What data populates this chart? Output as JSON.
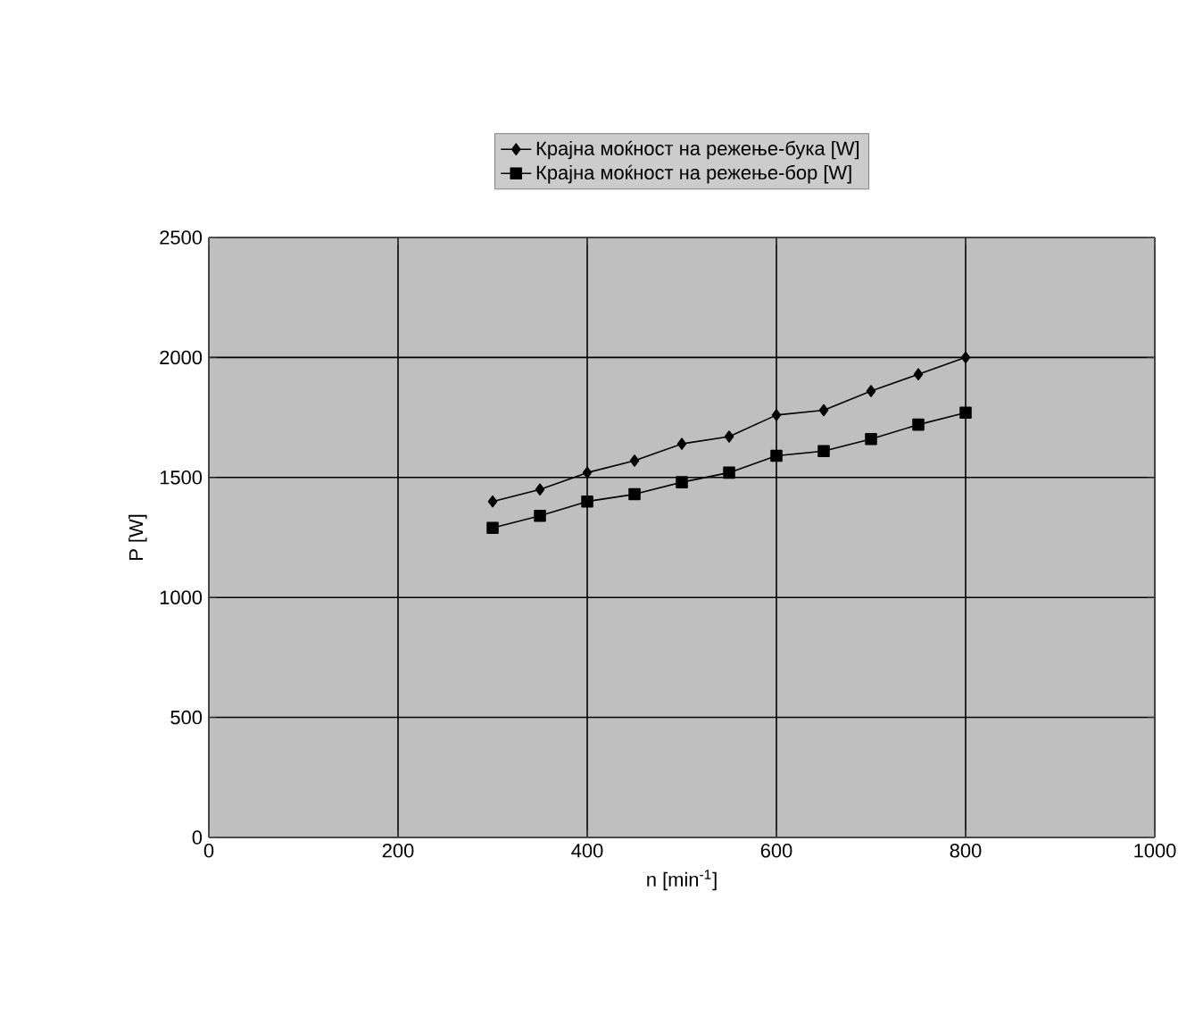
{
  "chart_data": {
    "type": "line",
    "xlabel": "n [min$^{-1}$]",
    "ylabel": "P [W]",
    "x": [
      300,
      350,
      400,
      450,
      500,
      550,
      600,
      650,
      700,
      750,
      800
    ],
    "series": [
      {
        "name": "Крајна моќност на режење-бука [W]",
        "color": "#000000",
        "marker": "diamond",
        "values": [
          1400,
          1450,
          1520,
          1570,
          1640,
          1670,
          1760,
          1780,
          1860,
          1930,
          2000
        ]
      },
      {
        "name": "Крајна моќност на режење-бор [W]",
        "color": "#000000",
        "marker": "square",
        "values": [
          1290,
          1340,
          1400,
          1430,
          1480,
          1520,
          1590,
          1610,
          1660,
          1720,
          1770
        ]
      }
    ],
    "xlim": [
      0,
      1000
    ],
    "xticks": [
      0,
      200,
      400,
      600,
      800,
      1000
    ],
    "ylim": [
      0,
      2500
    ],
    "yticks": [
      0,
      500,
      1000,
      1500,
      2000,
      2500
    ],
    "grid": true,
    "legend": "top",
    "line_style": "solid"
  }
}
